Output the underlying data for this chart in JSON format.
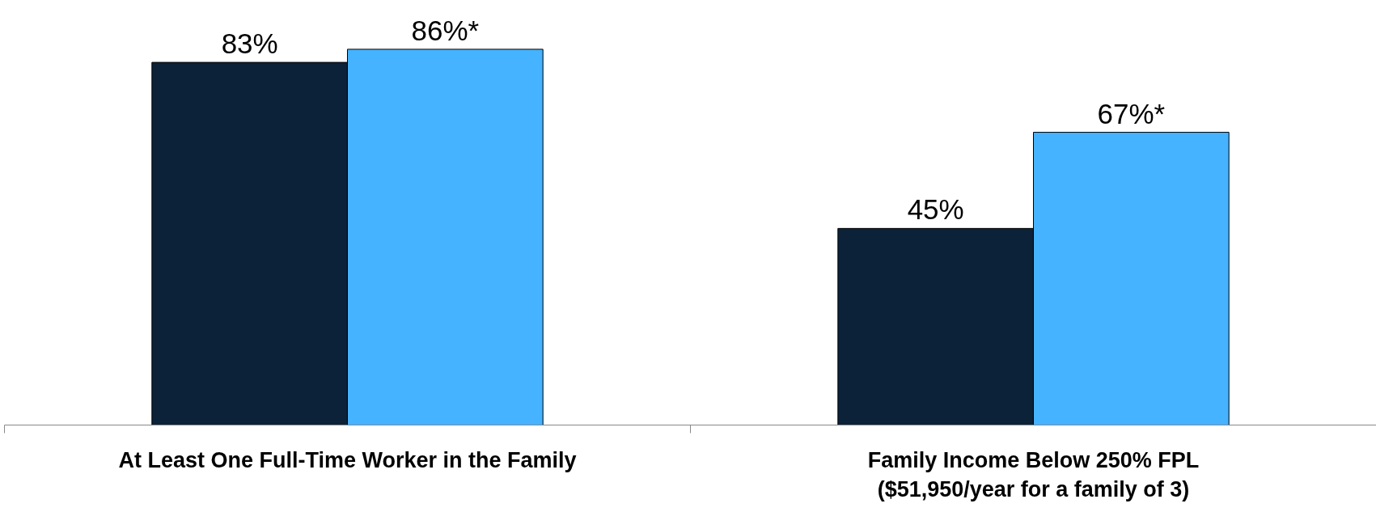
{
  "chart_data": {
    "type": "bar",
    "categories": [
      "At Least One Full-Time Worker in the Family",
      "Family Income Below 250% FPL\n($51,950/year for a family of 3)"
    ],
    "series": [
      {
        "color": "#0b2239",
        "values": [
          83,
          45
        ],
        "value_labels": [
          "83%",
          "45%"
        ]
      },
      {
        "color": "#45b3ff",
        "values": [
          86,
          67
        ],
        "value_labels": [
          "86%*",
          "67%*"
        ]
      }
    ],
    "grid": false
  }
}
